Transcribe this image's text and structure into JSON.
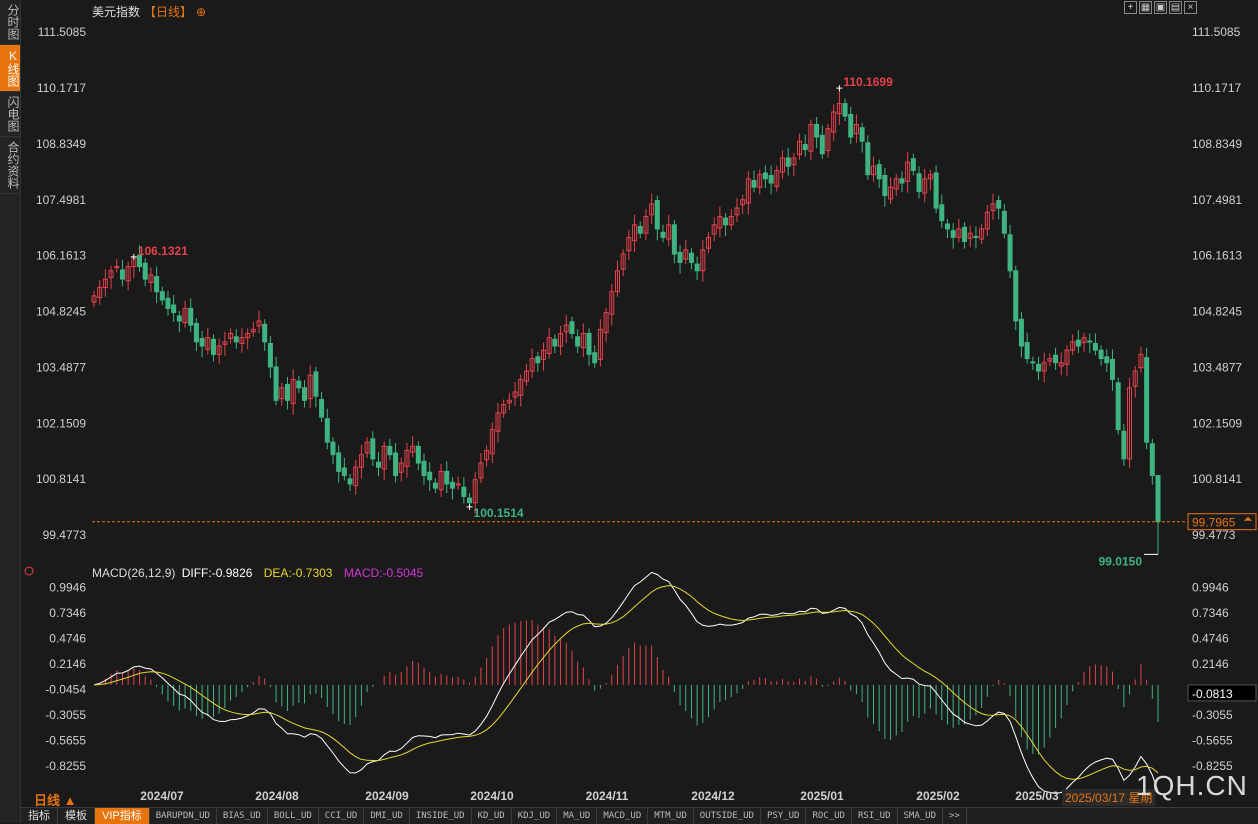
{
  "sidebar": {
    "tabs": [
      "分时图",
      "K线图",
      "闪电图",
      "合约资料"
    ],
    "active": 1
  },
  "header": {
    "title": "美元指数",
    "period": "【日线】",
    "add_icon": "circle-plus-icon"
  },
  "window_buttons": [
    "crosshair-icon",
    "grid-icon",
    "image-icon",
    "document-icon",
    "close-icon"
  ],
  "colors": {
    "up": "#e4424b",
    "down": "#3fb482",
    "accent": "#e8740c",
    "diff": "#ffffff",
    "dea": "#e6d72c",
    "macd": "#d336d8"
  },
  "chart_data": [
    {
      "type": "candlestick",
      "title": "美元指数",
      "y_ticks": [
        "111.5085",
        "110.1717",
        "108.8349",
        "107.4981",
        "106.1613",
        "104.8245",
        "103.4877",
        "102.1509",
        "100.8141",
        "99.4773"
      ],
      "ylim": [
        98.88,
        111.8
      ],
      "x_ticks": [
        "2024/07",
        "2024/08",
        "2024/09",
        "2024/10",
        "2024/11",
        "2024/12",
        "2025/01",
        "2025/02",
        "2025/03"
      ],
      "annotations": {
        "high_1": "106.1321",
        "low_1": "100.1514",
        "high_2": "110.1699",
        "low_2": "99.0150"
      },
      "last_price": {
        "value": 99.7965,
        "label": "99.7965"
      },
      "closes": [
        105.2,
        105.4,
        105.6,
        105.8,
        105.9,
        105.6,
        105.9,
        106.13,
        105.9,
        105.6,
        105.7,
        105.3,
        105.1,
        104.9,
        104.8,
        104.6,
        104.9,
        104.5,
        104.1,
        104.0,
        104.2,
        103.8,
        104.0,
        104.1,
        104.3,
        104.1,
        104.2,
        104.3,
        104.4,
        104.6,
        104.1,
        103.5,
        102.7,
        103.0,
        102.7,
        103.2,
        103.0,
        102.7,
        103.3,
        102.8,
        102.3,
        101.7,
        101.4,
        101.0,
        100.9,
        100.7,
        101.1,
        101.4,
        101.7,
        101.3,
        101.1,
        101.6,
        101.4,
        100.9,
        101.2,
        101.5,
        101.6,
        101.2,
        100.9,
        100.8,
        100.6,
        101.0,
        100.7,
        100.6,
        100.7,
        100.4,
        100.25,
        100.8,
        101.2,
        101.5,
        102.0,
        102.4,
        102.6,
        102.7,
        102.9,
        103.2,
        103.4,
        103.7,
        103.6,
        103.9,
        104.2,
        104.0,
        104.3,
        104.5,
        104.3,
        104.0,
        104.3,
        103.8,
        103.6,
        104.4,
        104.8,
        105.3,
        105.8,
        106.2,
        106.6,
        106.9,
        106.7,
        107.1,
        107.4,
        106.8,
        106.6,
        106.9,
        106.2,
        106.0,
        106.3,
        106.0,
        105.8,
        106.3,
        106.6,
        106.9,
        107.1,
        106.9,
        107.1,
        107.3,
        107.5,
        108.0,
        107.8,
        108.1,
        108.0,
        107.9,
        108.2,
        108.5,
        108.3,
        108.5,
        108.9,
        108.7,
        109.3,
        109.0,
        108.6,
        109.2,
        109.6,
        109.8,
        109.5,
        109.0,
        109.3,
        108.9,
        108.1,
        108.3,
        108.0,
        107.6,
        107.8,
        108.0,
        107.9,
        108.4,
        108.2,
        107.7,
        108.0,
        108.1,
        107.3,
        107.0,
        106.8,
        106.6,
        106.8,
        106.5,
        106.7,
        106.6,
        106.8,
        107.2,
        107.4,
        107.3,
        106.7,
        105.8,
        104.6,
        104.0,
        103.7,
        103.6,
        103.4,
        103.6,
        103.7,
        103.6,
        103.6,
        103.9,
        104.1,
        104.0,
        104.2,
        104.1,
        103.9,
        103.7,
        103.6,
        103.2,
        102.0,
        101.3,
        103.0,
        103.4,
        103.8,
        101.7,
        100.9,
        99.7965
      ],
      "indicator": {
        "name": "MACD(26,12,9)",
        "diff_label": "DIFF:-0.9826",
        "dea_label": "DEA:-0.7303",
        "macd_label": "MACD:-0.5045",
        "y_ticks": [
          "0.9946",
          "0.7346",
          "0.4746",
          "0.2146",
          "-0.0454",
          "-0.3055",
          "-0.5655",
          "-0.8255"
        ],
        "ylim": [
          -1.02,
          1.12
        ],
        "last_value": "-0.0813"
      }
    }
  ],
  "period_label": "日线 ▲",
  "current_date": "2025/03/17 星期",
  "watermark": "1QH.CN",
  "bottom_tabs": [
    "指标",
    "模板",
    "VIP指标",
    "BARUPDN_UD",
    "BIAS_UD",
    "BOLL_UD",
    "CCI_UD",
    "DMI_UD",
    "INSIDE_UD",
    "KD_UD",
    "KDJ_UD",
    "MA_UD",
    "MACD_UD",
    "MTM_UD",
    "OUTSIDE_UD",
    "PSY_UD",
    "ROC_UD",
    "RSI_UD",
    "SMA_UD",
    ">>"
  ],
  "bottom_active": 2
}
